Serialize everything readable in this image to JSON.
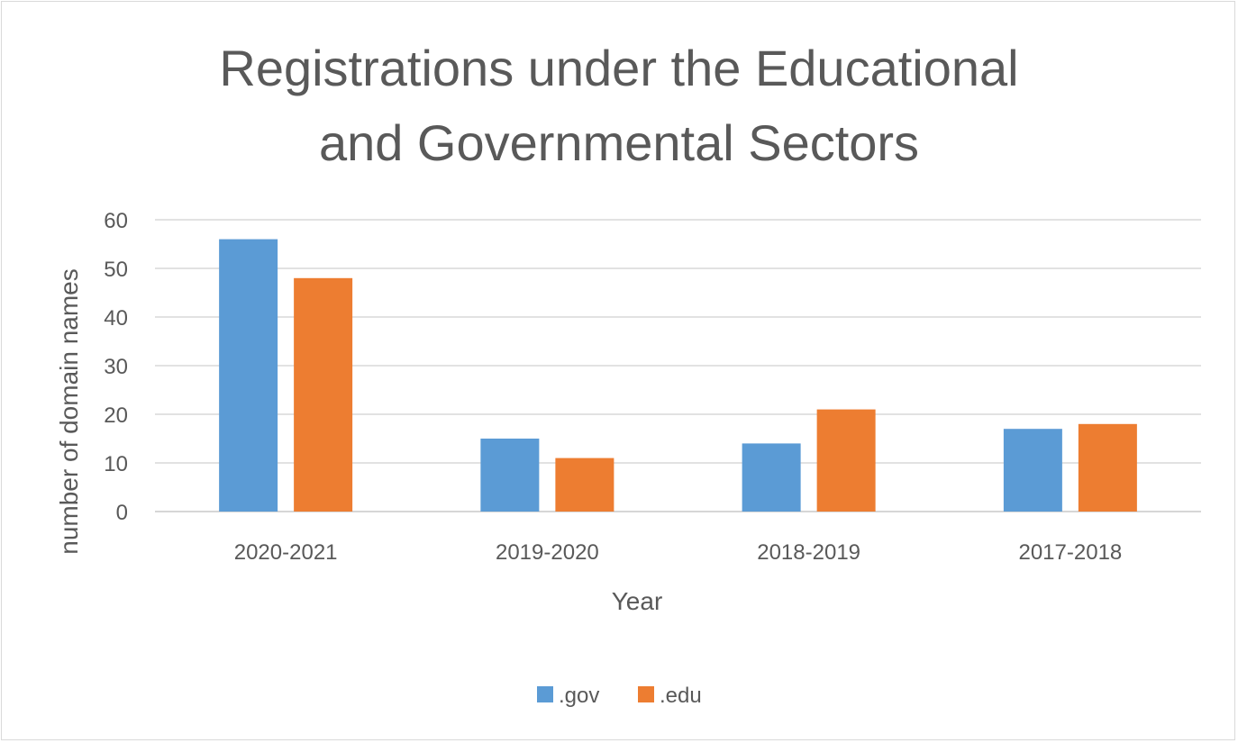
{
  "chart_data": {
    "type": "bar",
    "title_lines": [
      "Registrations under the Educational",
      "and Governmental Sectors"
    ],
    "xlabel": "Year",
    "ylabel": "number of domain names",
    "ylim": [
      0,
      60
    ],
    "yticks": [
      0,
      10,
      20,
      30,
      40,
      50,
      60
    ],
    "categories": [
      "2020-2021",
      "2019-2020",
      "2018-2019",
      "2017-2018"
    ],
    "series": [
      {
        "name": ".gov",
        "color": "#5b9bd5",
        "values": [
          56,
          15,
          14,
          17
        ]
      },
      {
        "name": ".edu",
        "color": "#ed7d31",
        "values": [
          48,
          11,
          21,
          18
        ]
      }
    ],
    "grid": true,
    "legend_position": "bottom"
  }
}
